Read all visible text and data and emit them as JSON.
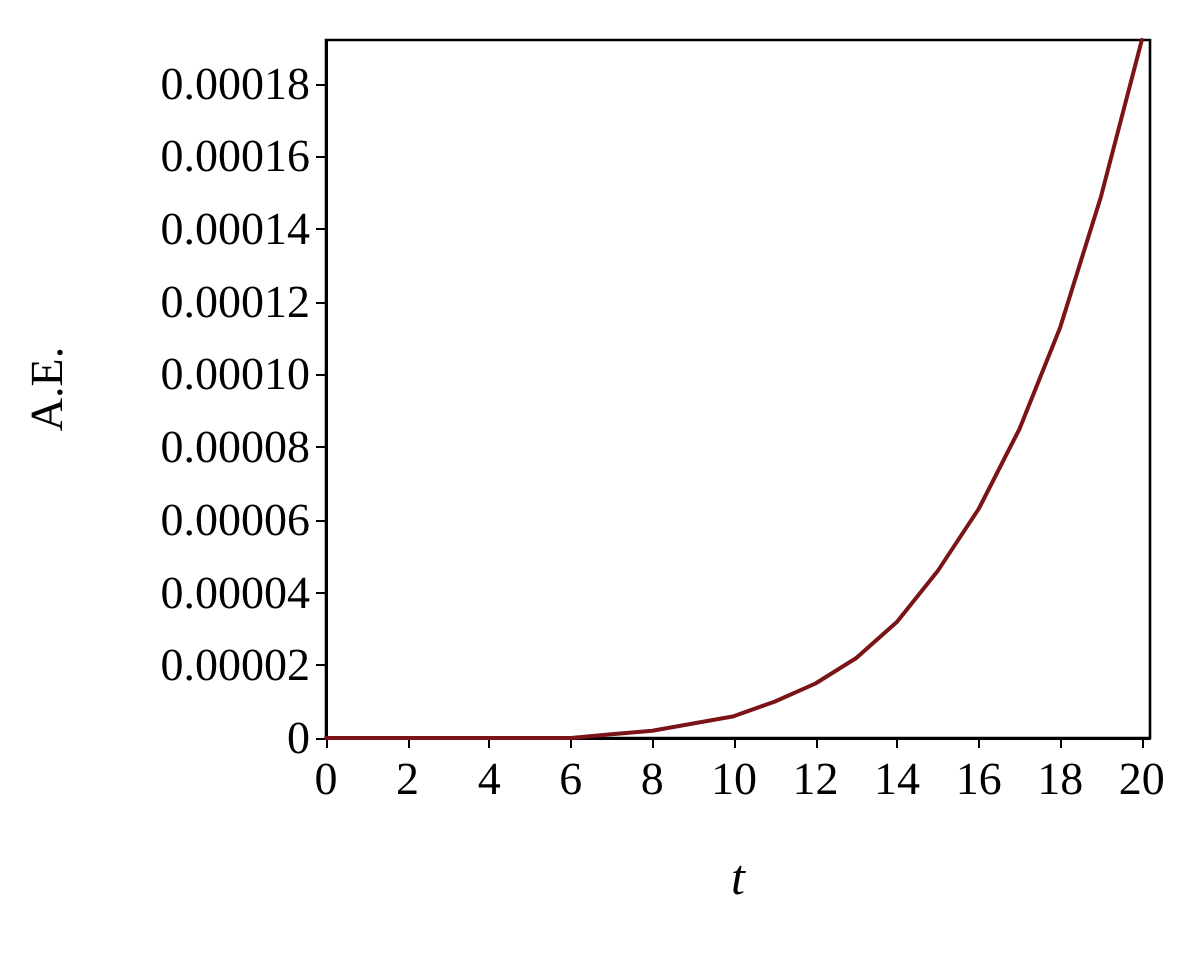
{
  "chart_data": {
    "type": "line",
    "xlabel": "t",
    "ylabel": "A.E.",
    "x": [
      0,
      1,
      2,
      3,
      4,
      5,
      6,
      7,
      8,
      9,
      10,
      11,
      12,
      13,
      14,
      15,
      16,
      17,
      18,
      19,
      20
    ],
    "series": [
      {
        "color": "#7b1416",
        "values": [
          0,
          0,
          0,
          0,
          0,
          0,
          0,
          1e-06,
          2e-06,
          4e-06,
          6e-06,
          1e-05,
          1.5e-05,
          2.2e-05,
          3.2e-05,
          4.6e-05,
          6.3e-05,
          8.5e-05,
          0.000113,
          0.000149,
          0.000192
        ]
      }
    ],
    "xlim": [
      0,
      20.2
    ],
    "xticks": [
      0,
      2,
      4,
      6,
      8,
      10,
      12,
      14,
      16,
      18,
      20
    ],
    "ylim": [
      0,
      0.000192
    ],
    "yticks": [
      0,
      {
        "value": 2e-05,
        "label": "0.00002"
      },
      {
        "value": 4e-05,
        "label": "0.00004"
      },
      {
        "value": 6e-05,
        "label": "0.00006"
      },
      {
        "value": 8e-05,
        "label": "0.00008"
      },
      {
        "value": 0.0001,
        "label": "0.00010"
      },
      0.00012,
      0.00014,
      0.00016,
      0.00018
    ],
    "grid": false,
    "legend": false,
    "marker": "none",
    "line_style": "solid"
  }
}
